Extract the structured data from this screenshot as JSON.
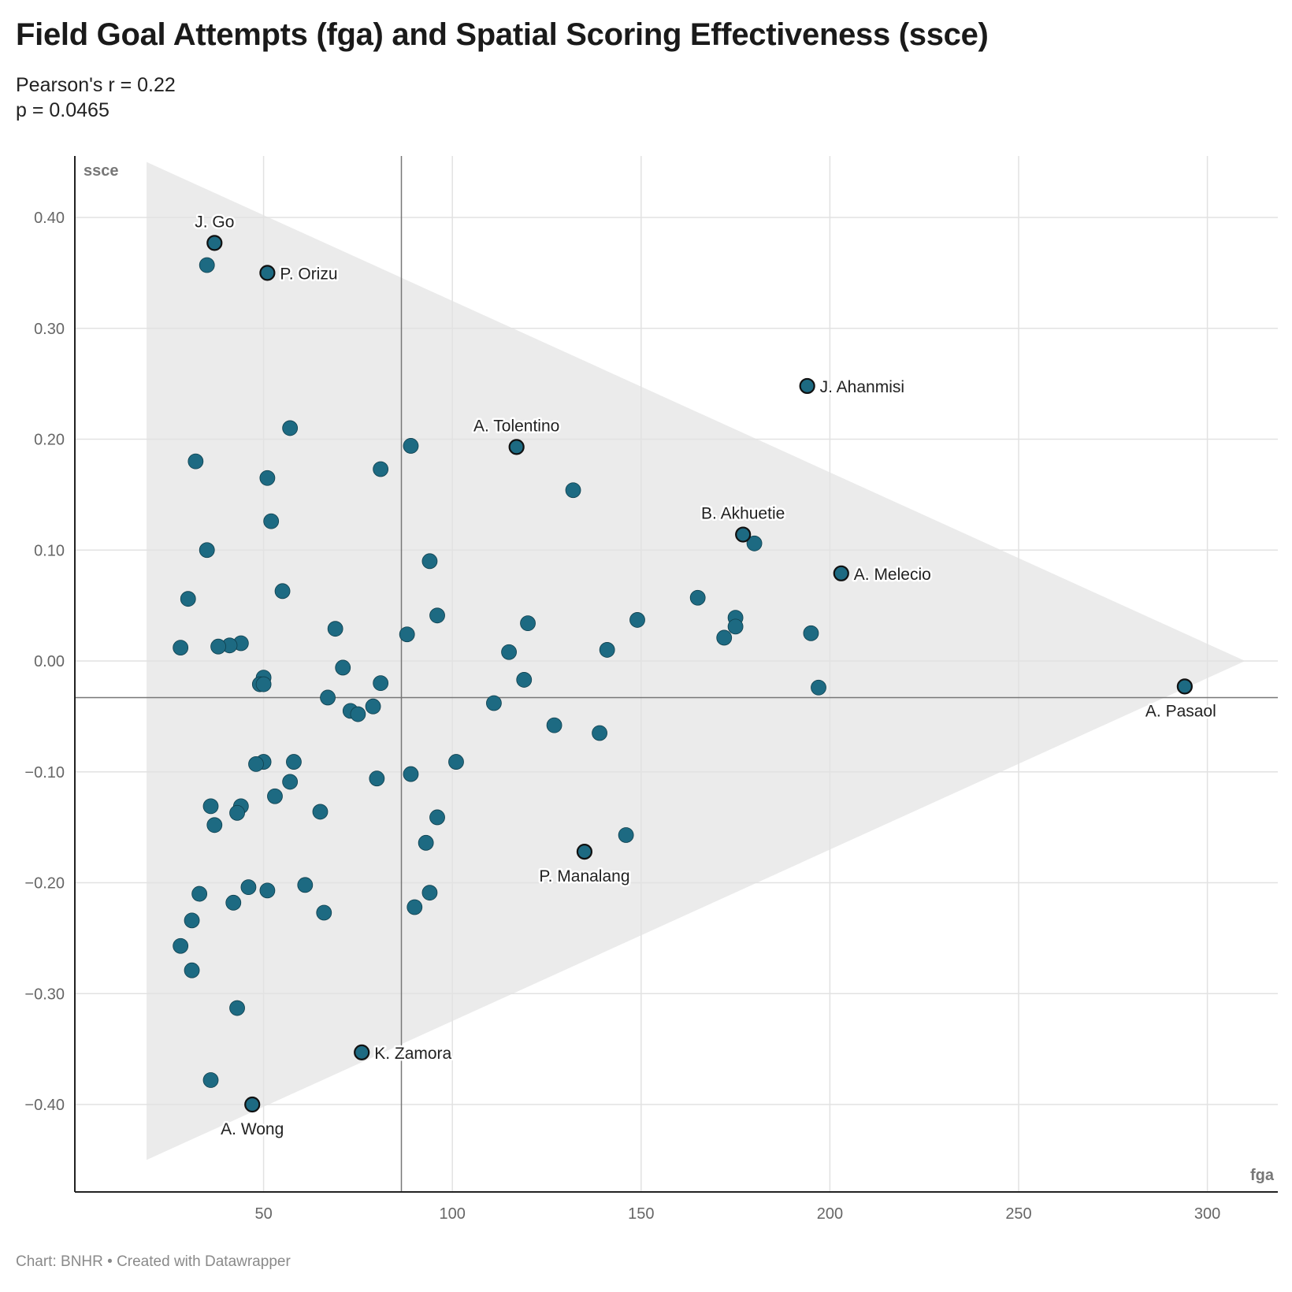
{
  "header": {
    "title": "Field Goal Attempts (fga) and Spatial Scoring Effectiveness (ssce)",
    "subtitle_line1": "Pearson's r = 0.22",
    "subtitle_line2": "p = 0.0465"
  },
  "footer": {
    "text": "Chart: BNHR • Created with Datawrapper"
  },
  "colors": {
    "dot": "#1d6a82",
    "dot_outline": "#0f3f4d",
    "highlight_outline": "#111111",
    "band": "#ebebeb",
    "grid": "#e2e2e2",
    "ref_line": "#777777"
  },
  "chart_data": {
    "type": "scatter",
    "xlabel": "fga",
    "ylabel": "ssce",
    "xlim": [
      0,
      320
    ],
    "ylim": [
      -0.47,
      0.45
    ],
    "x_ticks": [
      50,
      100,
      150,
      200,
      250,
      300
    ],
    "y_ticks": [
      0.4,
      0.3,
      0.2,
      0.1,
      0.0,
      -0.1,
      -0.2,
      -0.3,
      -0.4
    ],
    "y_tick_labels": [
      "0.40",
      "0.30",
      "0.20",
      "0.10",
      "0.00",
      "−0.10",
      "−0.20",
      "−0.30",
      "−0.40"
    ],
    "grid": true,
    "reference_lines": {
      "x_mean": 86.5,
      "y_mean": -0.033
    },
    "band_polygon": [
      [
        19,
        0.45
      ],
      [
        310,
        0.0
      ],
      [
        19,
        -0.45
      ]
    ],
    "points": [
      {
        "x": 37,
        "y": 0.377,
        "label": "J. Go",
        "highlight": true
      },
      {
        "x": 51,
        "y": 0.35,
        "label": "P. Orizu",
        "highlight": true
      },
      {
        "x": 194,
        "y": 0.248,
        "label": "J. Ahanmisi",
        "highlight": true
      },
      {
        "x": 117,
        "y": 0.193,
        "label": "A. Tolentino",
        "highlight": true
      },
      {
        "x": 177,
        "y": 0.114,
        "label": "B. Akhuetie",
        "highlight": true
      },
      {
        "x": 203,
        "y": 0.079,
        "label": "A. Melecio",
        "highlight": true
      },
      {
        "x": 294,
        "y": -0.023,
        "label": "A. Pasaol",
        "highlight": true
      },
      {
        "x": 135,
        "y": -0.172,
        "label": "P. Manalang",
        "highlight": true
      },
      {
        "x": 76,
        "y": -0.353,
        "label": "K. Zamora",
        "highlight": true
      },
      {
        "x": 47,
        "y": -0.4,
        "label": "A. Wong",
        "highlight": true
      },
      {
        "x": 35,
        "y": 0.357
      },
      {
        "x": 57,
        "y": 0.21
      },
      {
        "x": 89,
        "y": 0.194
      },
      {
        "x": 32,
        "y": 0.18
      },
      {
        "x": 81,
        "y": 0.173
      },
      {
        "x": 51,
        "y": 0.165
      },
      {
        "x": 132,
        "y": 0.154
      },
      {
        "x": 52,
        "y": 0.126
      },
      {
        "x": 180,
        "y": 0.106
      },
      {
        "x": 35,
        "y": 0.1
      },
      {
        "x": 94,
        "y": 0.09
      },
      {
        "x": 55,
        "y": 0.063
      },
      {
        "x": 165,
        "y": 0.057
      },
      {
        "x": 30,
        "y": 0.056
      },
      {
        "x": 96,
        "y": 0.041
      },
      {
        "x": 175,
        "y": 0.039
      },
      {
        "x": 149,
        "y": 0.037
      },
      {
        "x": 120,
        "y": 0.034
      },
      {
        "x": 175,
        "y": 0.031
      },
      {
        "x": 69,
        "y": 0.029
      },
      {
        "x": 195,
        "y": 0.025
      },
      {
        "x": 88,
        "y": 0.024
      },
      {
        "x": 172,
        "y": 0.021
      },
      {
        "x": 44,
        "y": 0.016
      },
      {
        "x": 41,
        "y": 0.014
      },
      {
        "x": 38,
        "y": 0.013
      },
      {
        "x": 28,
        "y": 0.012
      },
      {
        "x": 141,
        "y": 0.01
      },
      {
        "x": 115,
        "y": 0.008
      },
      {
        "x": 71,
        "y": -0.006
      },
      {
        "x": 50,
        "y": -0.015
      },
      {
        "x": 119,
        "y": -0.017
      },
      {
        "x": 81,
        "y": -0.02
      },
      {
        "x": 49,
        "y": -0.021
      },
      {
        "x": 50,
        "y": -0.021
      },
      {
        "x": 197,
        "y": -0.024
      },
      {
        "x": 67,
        "y": -0.033
      },
      {
        "x": 111,
        "y": -0.038
      },
      {
        "x": 79,
        "y": -0.041
      },
      {
        "x": 73,
        "y": -0.045
      },
      {
        "x": 75,
        "y": -0.048
      },
      {
        "x": 127,
        "y": -0.058
      },
      {
        "x": 139,
        "y": -0.065
      },
      {
        "x": 50,
        "y": -0.091
      },
      {
        "x": 58,
        "y": -0.091
      },
      {
        "x": 101,
        "y": -0.091
      },
      {
        "x": 48,
        "y": -0.093
      },
      {
        "x": 89,
        "y": -0.102
      },
      {
        "x": 80,
        "y": -0.106
      },
      {
        "x": 57,
        "y": -0.109
      },
      {
        "x": 53,
        "y": -0.122
      },
      {
        "x": 36,
        "y": -0.131
      },
      {
        "x": 44,
        "y": -0.131
      },
      {
        "x": 65,
        "y": -0.136
      },
      {
        "x": 43,
        "y": -0.137
      },
      {
        "x": 96,
        "y": -0.141
      },
      {
        "x": 37,
        "y": -0.148
      },
      {
        "x": 146,
        "y": -0.157
      },
      {
        "x": 93,
        "y": -0.164
      },
      {
        "x": 61,
        "y": -0.202
      },
      {
        "x": 46,
        "y": -0.204
      },
      {
        "x": 51,
        "y": -0.207
      },
      {
        "x": 94,
        "y": -0.209
      },
      {
        "x": 33,
        "y": -0.21
      },
      {
        "x": 42,
        "y": -0.218
      },
      {
        "x": 90,
        "y": -0.222
      },
      {
        "x": 66,
        "y": -0.227
      },
      {
        "x": 31,
        "y": -0.234
      },
      {
        "x": 28,
        "y": -0.257
      },
      {
        "x": 31,
        "y": -0.279
      },
      {
        "x": 43,
        "y": -0.313
      },
      {
        "x": 36,
        "y": -0.378
      }
    ]
  }
}
